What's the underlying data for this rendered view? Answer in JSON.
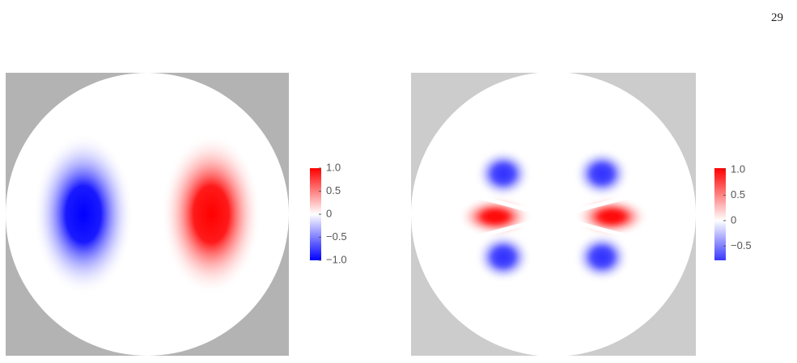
{
  "page_number": "29",
  "figures": [
    {
      "colorbar": {
        "clim": [
          -1,
          1
        ],
        "ticks": [
          {
            "value": 1,
            "label": "1.0"
          },
          0.5,
          0,
          {
            "value": -0.5,
            "label": "−0.5"
          },
          {
            "value": -1,
            "label": "−1.0"
          }
        ]
      }
    },
    {
      "colorbar": {
        "clim": [
          -0.78,
          1.03
        ],
        "ticks": [
          {
            "value": 1,
            "label": "1.0"
          },
          0.5,
          0,
          {
            "value": -0.5,
            "label": "−0.5"
          }
        ]
      }
    }
  ]
}
